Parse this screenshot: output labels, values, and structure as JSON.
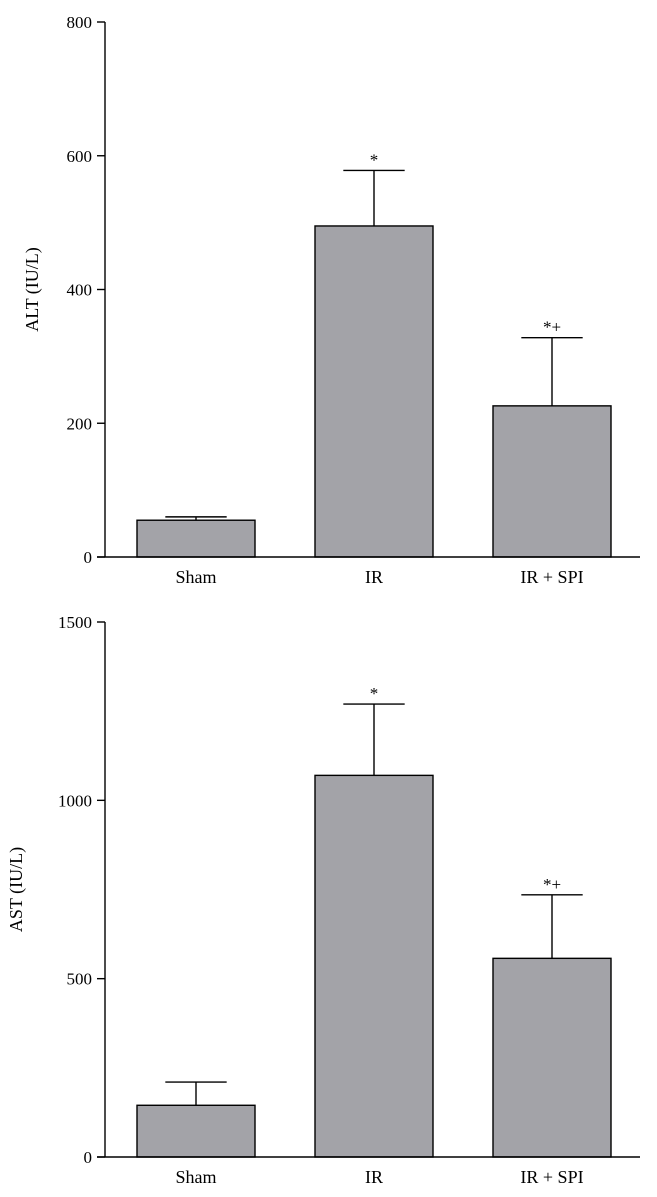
{
  "chart_data": [
    {
      "type": "bar",
      "ylabel": "ALT (IU/L)",
      "xlabel": "",
      "categories": [
        "Sham",
        "IR",
        "IR + SPI"
      ],
      "values": [
        55,
        495,
        226
      ],
      "errors": [
        5,
        83,
        102
      ],
      "annotations": [
        "",
        "*",
        "*+"
      ],
      "ylim": [
        0,
        800
      ],
      "yticks": [
        0,
        200,
        400,
        600,
        800
      ],
      "grid": false,
      "bar_color": "#a3a3a8"
    },
    {
      "type": "bar",
      "ylabel": "AST (IU/L)",
      "xlabel": "",
      "categories": [
        "Sham",
        "IR",
        "IR + SPI"
      ],
      "values": [
        145,
        1070,
        557
      ],
      "errors": [
        65,
        200,
        178
      ],
      "annotations": [
        "",
        "*",
        "*+"
      ],
      "ylim": [
        0,
        1500
      ],
      "yticks": [
        0,
        500,
        1000,
        1500
      ],
      "grid": false,
      "bar_color": "#a3a3a8"
    }
  ]
}
